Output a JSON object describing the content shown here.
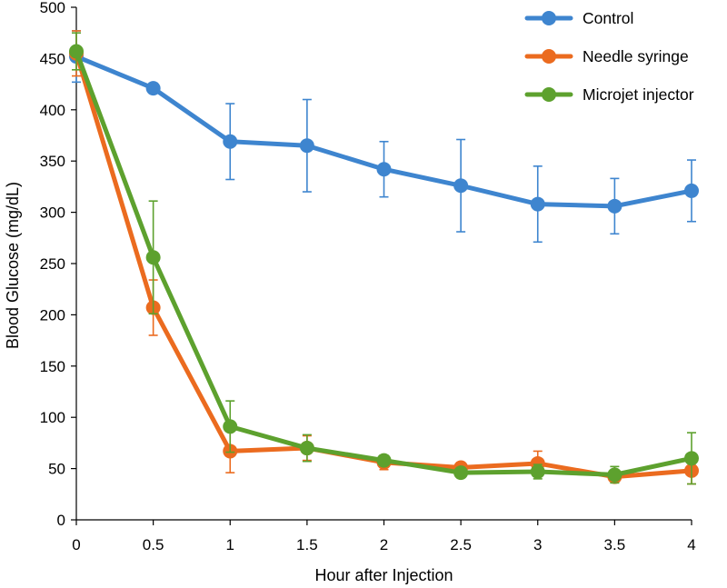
{
  "chart_data": {
    "type": "line",
    "title": "",
    "xlabel": "Hour after Injection",
    "ylabel": "Blood Glucose (mg/dL)",
    "x": [
      0,
      0.5,
      1,
      1.5,
      2,
      2.5,
      3,
      3.5,
      4
    ],
    "x_tick_labels": [
      "0",
      "0.5",
      "1",
      "1.5",
      "2",
      "2.5",
      "3",
      "3.5",
      "4"
    ],
    "xlim": [
      0,
      4
    ],
    "ylim": [
      0,
      500
    ],
    "y_ticks": [
      0,
      50,
      100,
      150,
      200,
      250,
      300,
      350,
      400,
      450,
      500
    ],
    "y_tick_labels": [
      "0",
      "50",
      "100",
      "150",
      "200",
      "250",
      "300",
      "350",
      "400",
      "450",
      "500"
    ],
    "grid": false,
    "legend_position": "top-right",
    "error_bars": true,
    "series": [
      {
        "name": "Control",
        "color": "#3E85CF",
        "values": [
          452,
          421,
          369,
          365,
          342,
          326,
          308,
          306,
          321
        ],
        "errors": [
          25,
          5,
          37,
          45,
          27,
          45,
          37,
          27,
          30
        ]
      },
      {
        "name": "Needle syringe",
        "color": "#EB6B1F",
        "values": [
          455,
          207,
          67,
          70,
          56,
          51,
          55,
          42,
          48
        ],
        "errors": [
          22,
          27,
          21,
          12,
          7,
          5,
          12,
          4,
          13
        ]
      },
      {
        "name": "Microjet injector",
        "color": "#5DA12E",
        "values": [
          457,
          256,
          91,
          70,
          58,
          46,
          47,
          44,
          60
        ],
        "errors": [
          18,
          55,
          25,
          13,
          5,
          5,
          7,
          8,
          25
        ]
      }
    ]
  }
}
